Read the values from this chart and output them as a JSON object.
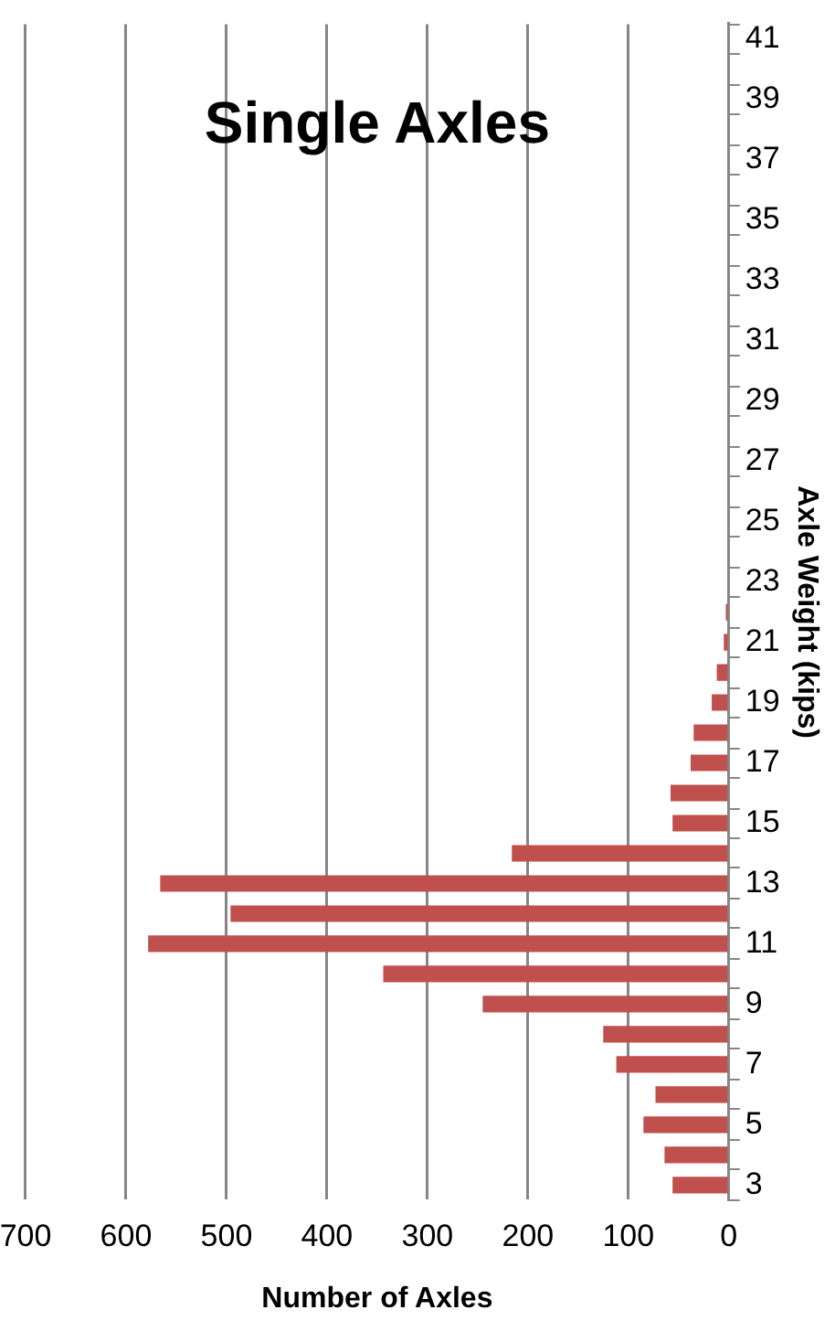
{
  "chart_data": {
    "type": "bar",
    "orientation": "horizontal",
    "title": "Single Axles",
    "xlabel": "Number of Axles",
    "ylabel": "Axle Weight (kips)",
    "categories": [
      "41",
      null,
      "39",
      null,
      "37",
      null,
      "35",
      null,
      "33",
      null,
      "31",
      null,
      "29",
      null,
      "27",
      null,
      "25",
      null,
      "23",
      null,
      "21",
      null,
      "19",
      null,
      "17",
      null,
      "15",
      null,
      "13",
      null,
      "11",
      null,
      "9",
      null,
      "7",
      null,
      "5",
      null,
      "3"
    ],
    "values": [
      0,
      0,
      0,
      0,
      0,
      0,
      0,
      0,
      0,
      0,
      0,
      0,
      0,
      0,
      0,
      0,
      0,
      0,
      0,
      3,
      5,
      12,
      17,
      35,
      38,
      58,
      56,
      216,
      566,
      496,
      578,
      344,
      245,
      125,
      112,
      73,
      85,
      64,
      56
    ],
    "color": "#c0504d",
    "xlim": [
      700,
      0
    ],
    "xticks": [
      0,
      100,
      200,
      300,
      400,
      500,
      600,
      700
    ],
    "grid": "x",
    "legend": false
  }
}
